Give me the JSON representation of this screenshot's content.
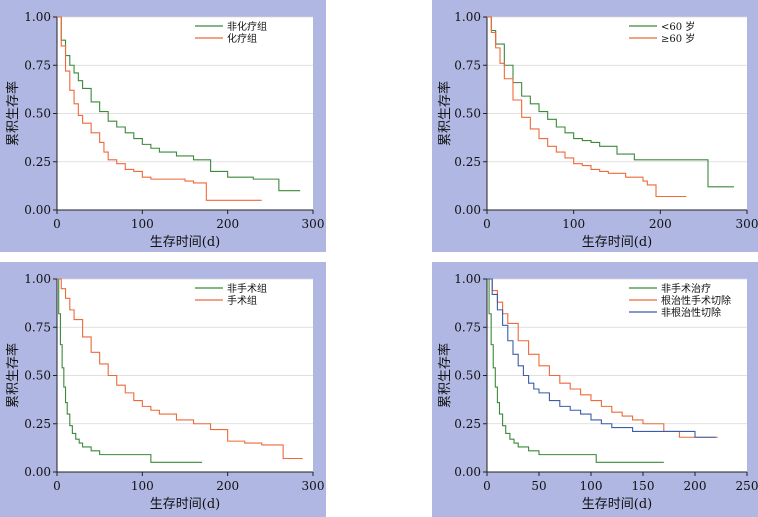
{
  "colors": {
    "panel_bg": "#afb7e2",
    "plot_bg": "#ffffff",
    "grid": "#d6d6d6",
    "axis": "#222222",
    "green": "#3a8a3a",
    "orange": "#ee6a3a",
    "blue": "#3a5caa"
  },
  "chart_data": [
    {
      "type": "line",
      "xlabel": "生存时间(d)",
      "ylabel": "累积生存率",
      "xlim": [
        0,
        300
      ],
      "ylim": [
        0,
        1
      ],
      "xticks": [
        "0",
        "100",
        "200",
        "300"
      ],
      "yticks": [
        "0.00",
        "0.25",
        "0.50",
        "0.75",
        "1.00"
      ],
      "legend_position": "top-right",
      "series": [
        {
          "name": "非化疗组",
          "color": "green",
          "x": [
            0,
            5,
            10,
            15,
            20,
            25,
            30,
            40,
            50,
            60,
            70,
            80,
            90,
            100,
            110,
            120,
            140,
            160,
            180,
            200,
            230,
            250,
            260,
            285
          ],
          "y": [
            1.0,
            0.88,
            0.8,
            0.75,
            0.71,
            0.67,
            0.63,
            0.56,
            0.51,
            0.46,
            0.43,
            0.4,
            0.37,
            0.34,
            0.32,
            0.3,
            0.28,
            0.26,
            0.2,
            0.17,
            0.16,
            0.16,
            0.1,
            0.1
          ]
        },
        {
          "name": "化疗组",
          "color": "orange",
          "x": [
            0,
            5,
            10,
            15,
            20,
            25,
            30,
            40,
            50,
            55,
            60,
            70,
            80,
            90,
            100,
            110,
            150,
            160,
            175,
            240
          ],
          "y": [
            1.0,
            0.85,
            0.72,
            0.62,
            0.55,
            0.49,
            0.45,
            0.4,
            0.35,
            0.3,
            0.26,
            0.24,
            0.21,
            0.2,
            0.17,
            0.16,
            0.15,
            0.14,
            0.05,
            0.05
          ]
        }
      ]
    },
    {
      "type": "line",
      "xlabel": "生存时间(d)",
      "ylabel": "累积生存率",
      "xlim": [
        0,
        300
      ],
      "ylim": [
        0,
        1
      ],
      "xticks": [
        "0",
        "100",
        "200",
        "300"
      ],
      "yticks": [
        "0.00",
        "0.25",
        "0.50",
        "0.75",
        "1.00"
      ],
      "legend_position": "top-right",
      "series": [
        {
          "name": "<60 岁",
          "color": "green",
          "x": [
            0,
            5,
            10,
            20,
            30,
            40,
            50,
            60,
            70,
            80,
            90,
            100,
            110,
            120,
            130,
            150,
            170,
            200,
            230,
            250,
            255,
            285
          ],
          "y": [
            1.0,
            0.93,
            0.86,
            0.75,
            0.66,
            0.59,
            0.55,
            0.51,
            0.47,
            0.43,
            0.4,
            0.37,
            0.36,
            0.35,
            0.33,
            0.29,
            0.26,
            0.26,
            0.26,
            0.26,
            0.12,
            0.12
          ]
        },
        {
          "name": "≥60 岁",
          "color": "orange",
          "x": [
            0,
            5,
            10,
            15,
            20,
            30,
            40,
            50,
            60,
            70,
            80,
            90,
            100,
            110,
            120,
            130,
            140,
            160,
            180,
            185,
            195,
            230
          ],
          "y": [
            1.0,
            0.92,
            0.84,
            0.76,
            0.68,
            0.57,
            0.48,
            0.42,
            0.37,
            0.33,
            0.3,
            0.27,
            0.24,
            0.23,
            0.21,
            0.2,
            0.19,
            0.17,
            0.15,
            0.13,
            0.07,
            0.07
          ]
        }
      ]
    },
    {
      "type": "line",
      "xlabel": "生存时间(d)",
      "ylabel": "累积生存率",
      "xlim": [
        0,
        300
      ],
      "ylim": [
        0,
        1
      ],
      "xticks": [
        "0",
        "100",
        "200",
        "300"
      ],
      "yticks": [
        "0.00",
        "0.25",
        "0.50",
        "0.75",
        "1.00"
      ],
      "legend_position": "top-right",
      "series": [
        {
          "name": "非手术组",
          "color": "green",
          "x": [
            0,
            2,
            4,
            6,
            8,
            10,
            12,
            15,
            18,
            22,
            26,
            30,
            40,
            50,
            60,
            70,
            80,
            90,
            110,
            130,
            170
          ],
          "y": [
            1.0,
            0.82,
            0.66,
            0.54,
            0.44,
            0.36,
            0.3,
            0.24,
            0.2,
            0.17,
            0.15,
            0.13,
            0.11,
            0.09,
            0.09,
            0.09,
            0.09,
            0.09,
            0.05,
            0.05,
            0.05
          ]
        },
        {
          "name": "手术组",
          "color": "orange",
          "x": [
            0,
            5,
            10,
            15,
            20,
            30,
            40,
            50,
            60,
            70,
            80,
            90,
            100,
            110,
            120,
            140,
            160,
            180,
            200,
            220,
            240,
            260,
            265,
            288
          ],
          "y": [
            1.0,
            0.95,
            0.9,
            0.84,
            0.79,
            0.7,
            0.62,
            0.56,
            0.5,
            0.45,
            0.41,
            0.37,
            0.34,
            0.32,
            0.3,
            0.27,
            0.25,
            0.22,
            0.16,
            0.15,
            0.14,
            0.14,
            0.07,
            0.07
          ]
        }
      ]
    },
    {
      "type": "line",
      "xlabel": "生存时间(d)",
      "ylabel": "累积生存率",
      "xlim": [
        0,
        250
      ],
      "ylim": [
        0,
        1
      ],
      "xticks": [
        "0",
        "50",
        "100",
        "150",
        "200",
        "250"
      ],
      "yticks": [
        "0.00",
        "0.25",
        "0.50",
        "0.75",
        "1.00"
      ],
      "legend_position": "top-right",
      "series": [
        {
          "name": "非手术治疗",
          "color": "green",
          "x": [
            0,
            2,
            4,
            6,
            8,
            10,
            12,
            15,
            18,
            22,
            26,
            30,
            40,
            50,
            60,
            70,
            80,
            90,
            100,
            105,
            130,
            170
          ],
          "y": [
            1.0,
            0.82,
            0.66,
            0.54,
            0.44,
            0.36,
            0.3,
            0.24,
            0.2,
            0.17,
            0.15,
            0.13,
            0.11,
            0.09,
            0.09,
            0.09,
            0.09,
            0.09,
            0.09,
            0.05,
            0.05,
            0.05
          ]
        },
        {
          "name": "根治性手术切除",
          "color": "orange",
          "x": [
            0,
            5,
            10,
            15,
            20,
            30,
            40,
            50,
            60,
            70,
            80,
            90,
            100,
            110,
            120,
            130,
            140,
            150,
            160,
            170,
            185,
            200,
            222
          ],
          "y": [
            1.0,
            0.94,
            0.88,
            0.82,
            0.77,
            0.68,
            0.61,
            0.55,
            0.5,
            0.46,
            0.43,
            0.4,
            0.37,
            0.34,
            0.31,
            0.29,
            0.27,
            0.25,
            0.25,
            0.21,
            0.18,
            0.18,
            0.18
          ]
        },
        {
          "name": "非根治性切除",
          "color": "blue",
          "x": [
            0,
            5,
            10,
            15,
            20,
            25,
            30,
            35,
            40,
            45,
            50,
            60,
            70,
            80,
            90,
            100,
            110,
            120,
            140,
            160,
            200,
            220
          ],
          "y": [
            1.0,
            0.92,
            0.84,
            0.76,
            0.68,
            0.61,
            0.55,
            0.5,
            0.46,
            0.43,
            0.41,
            0.37,
            0.34,
            0.32,
            0.3,
            0.27,
            0.25,
            0.23,
            0.21,
            0.21,
            0.18,
            0.18
          ]
        }
      ]
    }
  ]
}
